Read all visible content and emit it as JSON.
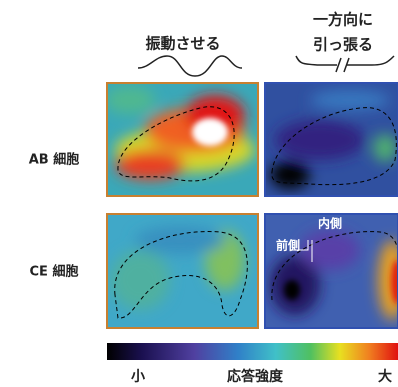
{
  "header": {
    "columns": [
      {
        "lines": [
          "振動させる"
        ]
      },
      {
        "lines": [
          "一方向に",
          "引っ張る"
        ]
      }
    ]
  },
  "rows": [
    {
      "label": "AB 細胞"
    },
    {
      "label": "CE 細胞"
    }
  ],
  "annotations": {
    "inner": "内側",
    "front": "前側"
  },
  "colorbar": {
    "min": "小",
    "title": "応答強度",
    "max": "大"
  }
}
